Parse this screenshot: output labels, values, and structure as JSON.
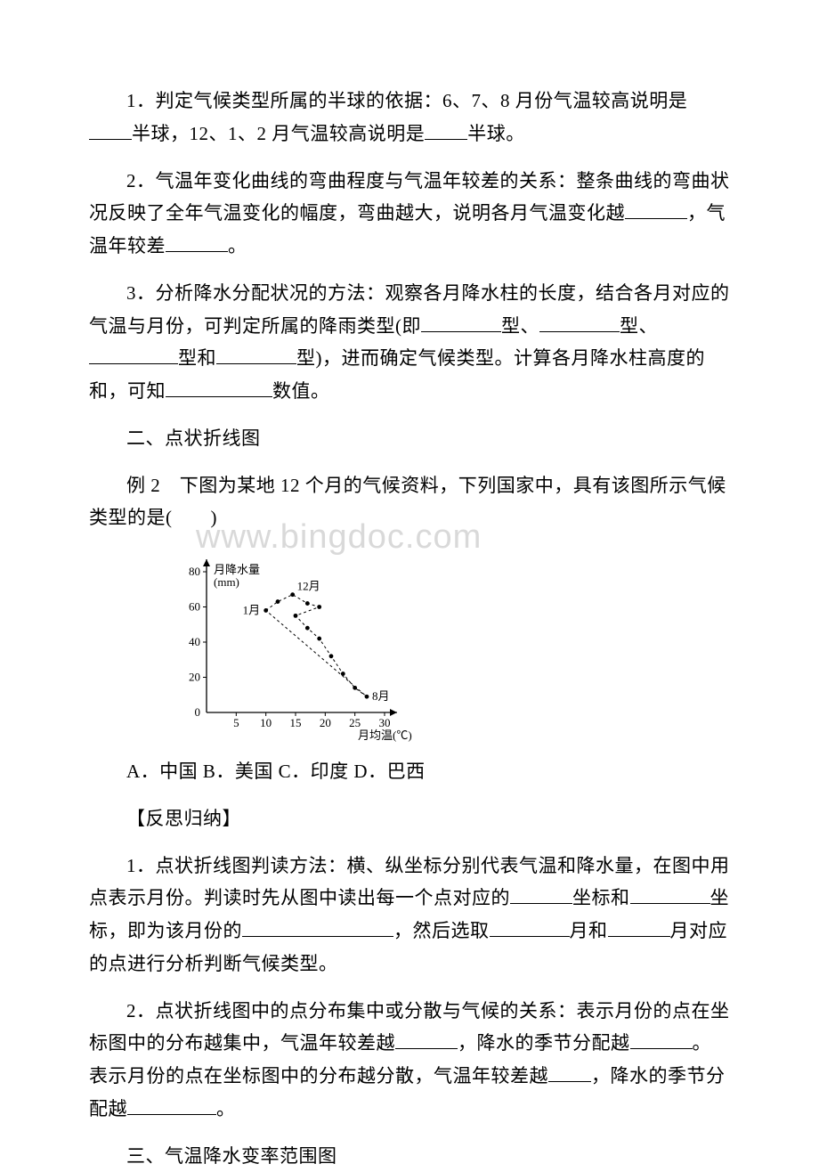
{
  "p1": {
    "t1": "1．判定气候类型所属的半球的依据：6、7、8 月份气温较高说明是",
    "t2": "半球，12、1、2 月气温较高说明是",
    "t3": "半球。"
  },
  "p2": {
    "t1": "2．气温年变化曲线的弯曲程度与气温年较差的关系：整条曲线的弯曲状况反映了全年气温变化的幅度，弯曲越大，说明各月气温变化越",
    "t2": "，气温年较差",
    "t3": "。"
  },
  "p3": {
    "t1": "3．分析降水分配状况的方法：观察各月降水柱的长度，结合各月对应的气温与月份，可判定所属的降雨类型(即",
    "t2": "型、",
    "t3": "型、",
    "t4": "型和",
    "t5": "型)，进而确定气候类型。计算各月降水柱高度的和，可知",
    "t6": "数值。"
  },
  "h2": "二、点状折线图",
  "p4": "例 2　下图为某地 12 个月的气候资料，下列国家中，具有该图所示气候类型的是(　　)",
  "chart": {
    "yLabelLine1": "月降水量",
    "yLabelLine2": "(mm)",
    "xLabelLine1": "月均温(℃)",
    "yTicks": [
      0,
      20,
      40,
      60,
      80
    ],
    "xTicks": [
      0,
      5,
      10,
      15,
      20,
      25,
      30
    ],
    "labelJan": "1月",
    "labelDec": "12月",
    "labelAug": "8月",
    "points": [
      {
        "x": 10,
        "y": 58
      },
      {
        "x": 12,
        "y": 63
      },
      {
        "x": 14.5,
        "y": 67
      },
      {
        "x": 17,
        "y": 62
      },
      {
        "x": 19,
        "y": 60
      },
      {
        "x": 15,
        "y": 55
      },
      {
        "x": 17,
        "y": 48
      },
      {
        "x": 19,
        "y": 42
      },
      {
        "x": 21,
        "y": 32
      },
      {
        "x": 23,
        "y": 22
      },
      {
        "x": 25,
        "y": 14
      },
      {
        "x": 27,
        "y": 9
      }
    ],
    "axisColor": "#000000",
    "pointColor": "#000000",
    "lineColor": "#000000",
    "fontSize": 13
  },
  "p5": "A．中国 B．美国 C．印度 D．巴西",
  "h3": "【反思归纳】",
  "p6": {
    "t1": "1．点状折线图判读方法：横、纵坐标分别代表气温和降水量，在图中用点表示月份。判读时先从图中读出每一个点对应的",
    "t2": "坐标和",
    "t3": "坐标，即为该月份的",
    "t4": "，然后选取",
    "t5": "月和",
    "t6": "月对应的点进行分析判断气候类型。"
  },
  "p7": {
    "t1": "2．点状折线图中的点分布集中或分散与气候的关系：表示月份的点在坐标图中的分布越集中，气温年较差越",
    "t2": "，降水的季节分配越",
    "t3": "。表示月份的点在坐标图中的分布越分散，气温年较差越",
    "t4": "，降水的季节分配越",
    "t5": "。"
  },
  "h4": "三、气温降水变率范围图",
  "watermark": "www.bingdoc.com"
}
